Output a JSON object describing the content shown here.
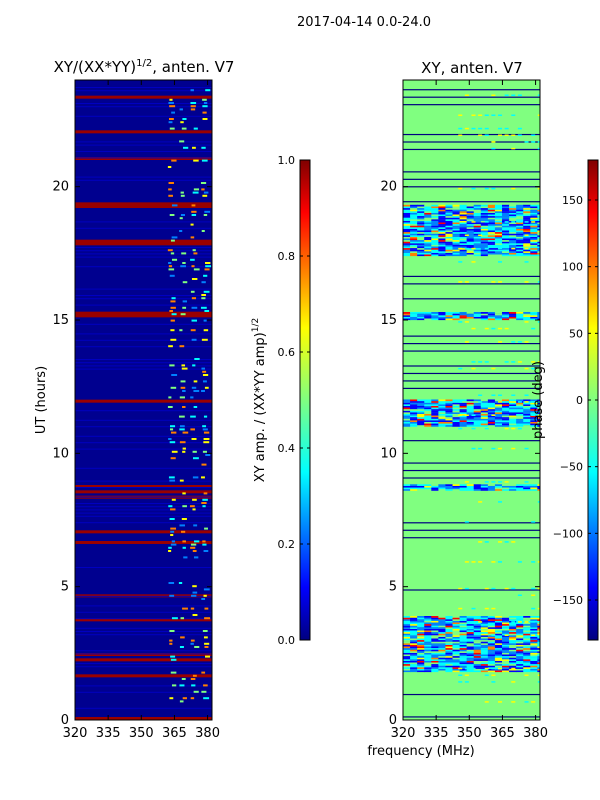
{
  "figure_title": "2017-04-14 0.0-24.0",
  "colors": {
    "jet_dark_blue": "#000080",
    "jet_blue": "#0000ff",
    "jet_cyan": "#00ffff",
    "jet_green": "#80ff80",
    "jet_yellow": "#ffff00",
    "jet_orange": "#ff8000",
    "jet_red": "#ff0000",
    "jet_dark_red": "#800000"
  },
  "chart_data": [
    {
      "type": "heatmap",
      "title_main": "XY/(XX*YY)",
      "title_sup": "1/2",
      "title_tail": ", anten. V7",
      "xlabel": "",
      "ylabel": "UT (hours)",
      "xlim": [
        320,
        382
      ],
      "ylim": [
        0,
        24
      ],
      "xticks": [
        "320",
        "335",
        "350",
        "365",
        "380"
      ],
      "xtick_values": [
        320,
        335,
        350,
        365,
        380
      ],
      "yticks": [
        "0",
        "5",
        "10",
        "15",
        "20"
      ],
      "ytick_values": [
        0,
        5,
        10,
        15,
        20
      ],
      "background_value": 0.05,
      "saturated_rows_hours": [
        0.0,
        1.6,
        2.2,
        2.4,
        3.7,
        4.6,
        6.6,
        7.0,
        8.3,
        8.5,
        8.7,
        11.9,
        15.1,
        15.2,
        17.8,
        17.9,
        19.2,
        19.3,
        21.0,
        22.0,
        23.3
      ],
      "colorbar": {
        "label_main": "XY amp. / (XX*YY amp)",
        "label_sup": "1/2",
        "range": [
          0.0,
          1.0
        ],
        "ticks": [
          "0.0",
          "0.2",
          "0.4",
          "0.6",
          "0.8",
          "1.0"
        ],
        "tick_values": [
          0.0,
          0.2,
          0.4,
          0.6,
          0.8,
          1.0
        ]
      }
    },
    {
      "type": "heatmap",
      "title": "XY, anten. V7",
      "xlabel": "frequency (MHz)",
      "ylabel": "",
      "xlim": [
        320,
        382
      ],
      "ylim": [
        0,
        24
      ],
      "xticks": [
        "320",
        "335",
        "350",
        "365",
        "380"
      ],
      "xtick_values": [
        320,
        335,
        350,
        365,
        380
      ],
      "yticks": [
        "0",
        "5",
        "10",
        "15",
        "20"
      ],
      "ytick_values": [
        0,
        5,
        10,
        15,
        20
      ],
      "background_value_deg": 0,
      "noisy_hour_ranges": [
        [
          1.8,
          3.9
        ],
        [
          8.6,
          8.8
        ],
        [
          11.0,
          12.0
        ],
        [
          15.0,
          15.3
        ],
        [
          17.4,
          19.3
        ]
      ],
      "colorbar": {
        "label": "phase (deg)",
        "range": [
          -180,
          180
        ],
        "ticks": [
          "−150",
          "−100",
          "−50",
          "0",
          "50",
          "100",
          "150"
        ],
        "tick_values": [
          -150,
          -100,
          -50,
          0,
          50,
          100,
          150
        ]
      }
    }
  ]
}
